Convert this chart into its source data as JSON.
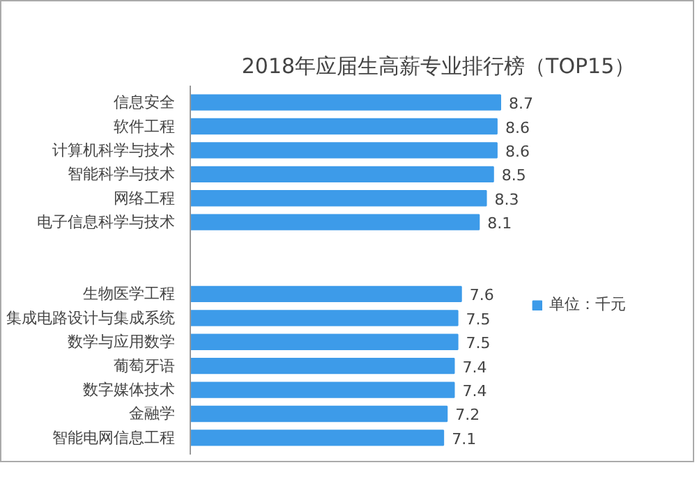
{
  "chart_data": {
    "type": "bar",
    "orientation": "horizontal",
    "title": "2018年应届生高薪专业排行榜（TOP15）",
    "categories": [
      "信息安全",
      "软件工程",
      "计算机科学与技术",
      "智能科学与技术",
      "网络工程",
      "电子信息科学与技术",
      null,
      null,
      "生物医学工程",
      "集成电路设计与集成系统",
      "数学与应用数学",
      "葡萄牙语",
      "数字媒体技术",
      "金融学",
      "智能电网信息工程"
    ],
    "series": [
      {
        "name": "单位：千元",
        "color": "#3d9be9",
        "values": [
          8.7,
          8.6,
          8.6,
          8.5,
          8.3,
          8.1,
          null,
          null,
          7.6,
          7.5,
          7.5,
          7.4,
          7.4,
          7.2,
          7.1
        ]
      }
    ],
    "data_labels": true,
    "legend": "right"
  }
}
